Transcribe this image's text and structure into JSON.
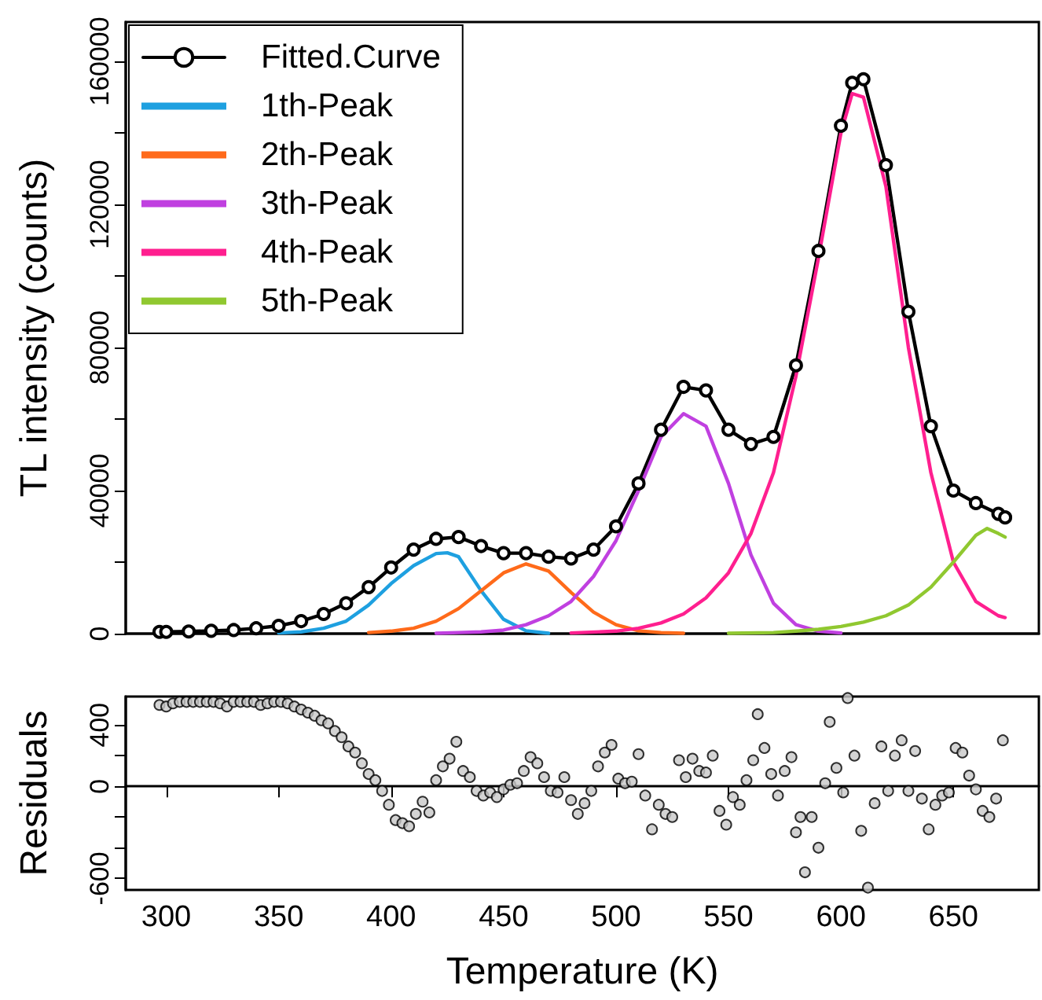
{
  "chart_data": [
    {
      "type": "line",
      "ylabel": "TL intensity (counts)",
      "xlim": [
        282,
        688
      ],
      "ylim": [
        0,
        171000
      ],
      "yticks": [
        0,
        {
          "value": 20000,
          "label": null
        },
        40000,
        {
          "value": 60000,
          "label": null
        },
        80000,
        {
          "value": 100000,
          "label": null
        },
        120000,
        {
          "value": 140000,
          "label": null
        },
        160000
      ],
      "tick_labels": "y",
      "legend": "top left",
      "series": [
        {
          "name": "Fitted.Curve",
          "color": "#000000",
          "marker": "circle",
          "x": [
            297,
            300,
            310,
            320,
            330,
            340,
            350,
            360,
            370,
            380,
            390,
            400,
            410,
            420,
            430,
            440,
            450,
            460,
            470,
            480,
            490,
            500,
            510,
            520,
            530,
            540,
            550,
            560,
            570,
            580,
            590,
            600,
            605,
            610,
            620,
            630,
            640,
            650,
            660,
            670,
            673
          ],
          "values": [
            500,
            500,
            600,
            800,
            1000,
            1500,
            2200,
            3500,
            5500,
            8500,
            13000,
            18500,
            23500,
            26500,
            27000,
            24500,
            22500,
            22500,
            21500,
            21000,
            23500,
            30000,
            42000,
            57000,
            69000,
            68000,
            57000,
            53000,
            55000,
            75000,
            107000,
            142000,
            154000,
            155000,
            131000,
            90000,
            58000,
            40000,
            36500,
            33500,
            32500
          ]
        },
        {
          "name": "1th-Peak",
          "color": "#1ea0e0",
          "x": [
            350,
            360,
            370,
            380,
            390,
            400,
            410,
            420,
            425,
            430,
            440,
            450,
            460,
            470
          ],
          "values": [
            200,
            500,
            1500,
            3500,
            8000,
            14000,
            19000,
            22400,
            22600,
            21500,
            12000,
            4000,
            800,
            100
          ]
        },
        {
          "name": "2th-Peak",
          "color": "#ff6a1a",
          "x": [
            390,
            400,
            410,
            420,
            430,
            440,
            450,
            460,
            470,
            480,
            490,
            500,
            510,
            520,
            530
          ],
          "values": [
            300,
            700,
            1500,
            3500,
            7000,
            12000,
            17000,
            19500,
            17500,
            11500,
            6000,
            2500,
            800,
            300,
            100
          ]
        },
        {
          "name": "3th-Peak",
          "color": "#c040e0",
          "x": [
            420,
            430,
            440,
            450,
            460,
            470,
            480,
            490,
            500,
            510,
            520,
            530,
            540,
            550,
            560,
            570,
            580,
            590,
            600
          ],
          "values": [
            100,
            300,
            500,
            1000,
            2500,
            5000,
            9000,
            16000,
            26000,
            40000,
            55000,
            61500,
            58000,
            42000,
            22000,
            8500,
            2500,
            700,
            200
          ]
        },
        {
          "name": "4th-Peak",
          "color": "#ff1f8f",
          "x": [
            480,
            500,
            510,
            520,
            530,
            540,
            550,
            560,
            570,
            580,
            590,
            600,
            605,
            610,
            620,
            630,
            640,
            650,
            660,
            670,
            673
          ],
          "values": [
            200,
            700,
            1500,
            3000,
            5500,
            10000,
            17000,
            28000,
            45000,
            72000,
            105000,
            140000,
            151000,
            150000,
            125000,
            80000,
            45000,
            20000,
            9000,
            5000,
            4500
          ]
        },
        {
          "name": "5th-Peak",
          "color": "#90c830",
          "x": [
            550,
            570,
            580,
            590,
            600,
            610,
            620,
            630,
            640,
            650,
            660,
            665,
            670,
            673
          ],
          "values": [
            100,
            300,
            700,
            1200,
            2000,
            3200,
            5000,
            8000,
            13000,
            20000,
            27500,
            29400,
            28000,
            27000
          ]
        }
      ]
    },
    {
      "type": "scatter",
      "xlabel": "Temperature (K)",
      "ylabel": "Residuals",
      "xlim": [
        282,
        688
      ],
      "xticks": [
        300,
        350,
        400,
        450,
        500,
        550,
        600,
        650
      ],
      "ylim": [
        -675,
        585
      ],
      "yticks": [
        -600,
        {
          "value": -400,
          "label": null
        },
        {
          "value": -200,
          "label": null
        },
        0,
        {
          "value": 200,
          "label": null
        },
        400
      ],
      "marker": "circle",
      "series": [
        {
          "color": "#000000",
          "x": [
            297,
            300,
            303,
            306,
            309,
            312,
            315,
            318,
            321,
            324,
            327,
            330,
            333,
            336,
            339,
            342,
            345,
            348,
            351,
            354,
            357,
            360,
            363,
            366,
            369,
            372,
            375,
            378,
            381,
            384,
            387,
            390,
            393,
            396,
            399,
            402,
            405,
            408,
            411,
            414,
            417,
            420,
            423,
            426,
            429,
            432,
            435,
            438,
            441,
            444,
            447,
            450,
            453,
            456,
            459,
            462,
            465,
            468,
            471,
            474,
            477,
            480,
            483,
            486,
            489,
            492,
            495,
            498,
            501,
            504,
            507,
            510,
            513,
            516,
            519,
            522,
            525,
            528,
            531,
            534,
            537,
            540,
            543,
            546,
            549,
            552,
            555,
            558,
            561,
            563,
            566,
            569,
            572,
            575,
            578,
            580,
            582,
            584,
            587,
            590,
            593,
            595,
            598,
            601,
            603,
            606,
            609,
            612,
            615,
            618,
            621,
            624,
            627,
            630,
            633,
            636,
            639,
            642,
            645,
            648,
            651,
            654,
            657,
            660,
            663,
            666,
            669,
            672
          ],
          "values": [
            530,
            520,
            540,
            550,
            550,
            550,
            550,
            550,
            550,
            540,
            520,
            550,
            550,
            550,
            550,
            530,
            540,
            550,
            550,
            540,
            520,
            500,
            480,
            460,
            430,
            410,
            360,
            320,
            260,
            220,
            150,
            80,
            40,
            -30,
            -120,
            -220,
            -240,
            -260,
            -180,
            -100,
            -170,
            40,
            130,
            180,
            290,
            100,
            60,
            -30,
            -60,
            -40,
            -70,
            -20,
            10,
            20,
            100,
            190,
            150,
            60,
            -30,
            -40,
            60,
            -90,
            -180,
            -110,
            -30,
            130,
            220,
            270,
            50,
            20,
            30,
            210,
            -60,
            -280,
            -120,
            -180,
            -200,
            170,
            60,
            180,
            100,
            90,
            200,
            -160,
            -250,
            -70,
            -120,
            40,
            170,
            470,
            250,
            80,
            -60,
            100,
            190,
            -300,
            -200,
            -560,
            -200,
            -400,
            20,
            420,
            120,
            -40,
            575,
            200,
            -290,
            -660,
            -110,
            260,
            -30,
            200,
            300,
            -30,
            230,
            -80,
            -280,
            -120,
            -60,
            -40,
            250,
            220,
            70,
            -20,
            -160,
            -200,
            -80,
            300
          ]
        }
      ]
    }
  ]
}
